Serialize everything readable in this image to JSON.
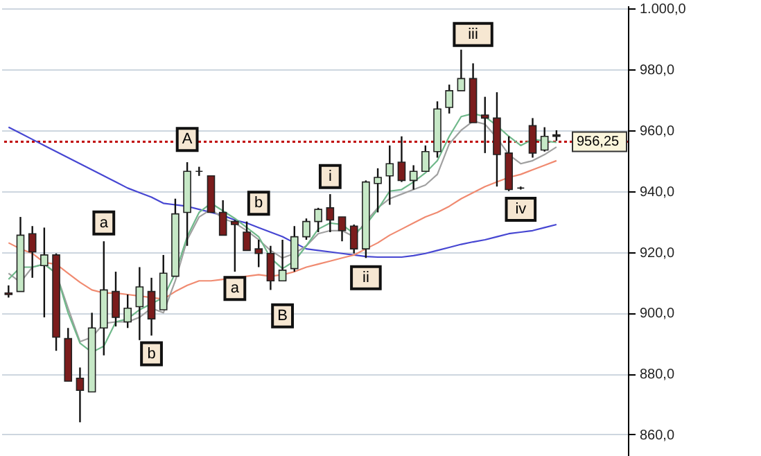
{
  "chart_data": {
    "type": "candlestick",
    "categories": [
      null,
      null,
      null,
      null,
      null,
      null,
      null,
      null,
      null,
      null,
      null,
      null,
      null,
      null,
      null,
      null,
      null,
      null,
      null,
      null,
      null,
      null,
      null,
      null,
      null,
      null,
      null,
      null,
      null,
      null,
      null,
      null,
      null,
      null,
      null,
      null,
      null,
      null,
      null,
      null,
      null,
      null,
      null,
      null,
      null,
      null,
      null
    ],
    "ohlc": [
      [
        906.5,
        909,
        905,
        906
      ],
      [
        907,
        931.5,
        907,
        925.5
      ],
      [
        926,
        928.5,
        911.5,
        920
      ],
      [
        915.5,
        928,
        898.5,
        919
      ],
      [
        919,
        919.5,
        887.5,
        892
      ],
      [
        891.5,
        895,
        877.5,
        877.5
      ],
      [
        878.5,
        882,
        864,
        874.5
      ],
      [
        874,
        900,
        874,
        895
      ],
      [
        895,
        923.5,
        886,
        907.5
      ],
      [
        907,
        913.5,
        895.5,
        898.5
      ],
      [
        897,
        906,
        895,
        901.5
      ],
      [
        902,
        915,
        891,
        908.5
      ],
      [
        907,
        911.5,
        892.5,
        898
      ],
      [
        901,
        919,
        901,
        913
      ],
      [
        912,
        937.5,
        912,
        932.5
      ],
      [
        933,
        949.5,
        922,
        946.5
      ],
      [
        946.5,
        948,
        945,
        946.5
      ],
      [
        945,
        945,
        933,
        933
      ],
      [
        933,
        937,
        925.5,
        925.5
      ],
      [
        930,
        930.5,
        913.5,
        929
      ],
      [
        926.5,
        930,
        920.5,
        920.5
      ],
      [
        921,
        924,
        915,
        919.5
      ],
      [
        919.5,
        922,
        907.5,
        910.5
      ],
      [
        910.5,
        924,
        910.5,
        914
      ],
      [
        914.5,
        928.5,
        913.5,
        925
      ],
      [
        925,
        931,
        924,
        930
      ],
      [
        930,
        934.5,
        926.5,
        934
      ],
      [
        934.5,
        939,
        926.5,
        930.5
      ],
      [
        931.5,
        931.5,
        923.5,
        927
      ],
      [
        928.5,
        929,
        919.5,
        921
      ],
      [
        921,
        943.5,
        918,
        943
      ],
      [
        942.5,
        947.5,
        933,
        944.5
      ],
      [
        945,
        955,
        935.5,
        949
      ],
      [
        949.5,
        958,
        943,
        943.5
      ],
      [
        943.5,
        948.5,
        940.5,
        946.5
      ],
      [
        946.5,
        955,
        946.5,
        953
      ],
      [
        953,
        969.5,
        951,
        967
      ],
      [
        967.5,
        975,
        965.5,
        973
      ],
      [
        973,
        986.5,
        973,
        977
      ],
      [
        977,
        982,
        962.5,
        962.5
      ],
      [
        965,
        971,
        952.5,
        964
      ],
      [
        964,
        972.5,
        941.5,
        952
      ],
      [
        952.5,
        958,
        940,
        940.5
      ],
      [
        941,
        941.5,
        940.5,
        941
      ],
      [
        961.5,
        964,
        951,
        952.5
      ],
      [
        953.5,
        961,
        953,
        958
      ],
      [
        958.5,
        960,
        956.5,
        958
      ]
    ],
    "colors": [
      "#7b1c1c",
      "#c6e8c6",
      "#7b1c1c",
      "#c6e8c6",
      "#7b1c1c",
      "#7b1c1c",
      "#7b1c1c",
      "#c6e8c6",
      "#c6e8c6",
      "#7b1c1c",
      "#c6e8c6",
      "#c6e8c6",
      "#7b1c1c",
      "#c6e8c6",
      "#c6e8c6",
      "#c6e8c6",
      "#222222",
      "#7b1c1c",
      "#7b1c1c",
      "#7b1c1c",
      "#7b1c1c",
      "#7b1c1c",
      "#7b1c1c",
      "#c6e8c6",
      "#c6e8c6",
      "#c6e8c6",
      "#c6e8c6",
      "#7b1c1c",
      "#7b1c1c",
      "#7b1c1c",
      "#c6e8c6",
      "#c6e8c6",
      "#c6e8c6",
      "#7b1c1c",
      "#c6e8c6",
      "#c6e8c6",
      "#c6e8c6",
      "#c6e8c6",
      "#c6e8c6",
      "#7b1c1c",
      "#7b1c1c",
      "#7b1c1c",
      "#7b1c1c",
      "#222222",
      "#7b1c1c",
      "#c6e8c6",
      "#222222"
    ],
    "series": [
      {
        "type": "line",
        "color": "#4646d2",
        "values": [
          961,
          959,
          957,
          955,
          953,
          951,
          949,
          947,
          945,
          943,
          941,
          939.5,
          938,
          936,
          935.5,
          935,
          934,
          933,
          932,
          930.5,
          929.5,
          928,
          926.5,
          925,
          923,
          921,
          920.5,
          920,
          919.5,
          919,
          918.5,
          918.3,
          918.3,
          918.3,
          918.8,
          919.5,
          920.5,
          921.5,
          922.5,
          923.3,
          924,
          925,
          926,
          926.5,
          927,
          928,
          929
        ]
      },
      {
        "type": "line",
        "color": "#f08a70",
        "values": [
          923,
          921,
          919.5,
          916.5,
          916,
          913,
          910,
          907.5,
          906.5,
          906.5,
          906,
          905.5,
          905,
          904.5,
          907,
          909,
          910.5,
          910.5,
          911,
          911.5,
          912,
          912.5,
          912,
          912.5,
          913.5,
          915,
          916,
          917,
          918,
          919,
          921,
          923,
          925.5,
          927.5,
          929.5,
          931.5,
          933,
          935,
          937.5,
          939.5,
          941.5,
          943,
          944.5,
          945.5,
          947,
          948.5,
          950
        ]
      },
      {
        "type": "line",
        "color": "#a0a0a0",
        "values": [
          913,
          910,
          915,
          916,
          913,
          901.5,
          890.5,
          892,
          896.5,
          897,
          897,
          898.5,
          901.5,
          900,
          910.5,
          924,
          931.5,
          934,
          931,
          929.5,
          927,
          924,
          920.5,
          918,
          919.5,
          922,
          926,
          927,
          927,
          925,
          930,
          934.5,
          937.5,
          939,
          940.5,
          942,
          945.5,
          955.5,
          960,
          963,
          962,
          957.5,
          952,
          949,
          950,
          952,
          954.5
        ]
      },
      {
        "type": "line",
        "color": "#6fb88a",
        "values": [
          911,
          915,
          915,
          916,
          913,
          900,
          890,
          887,
          889,
          897,
          898,
          901,
          903,
          905,
          913,
          925,
          933,
          936,
          933.5,
          931,
          928,
          925,
          918,
          914.5,
          917,
          922,
          927.5,
          929.5,
          929,
          926,
          929,
          934,
          940,
          940.5,
          943,
          946,
          950,
          958,
          964.5,
          965.5,
          964.5,
          961.5,
          958,
          955,
          957,
          956.5,
          956
        ]
      }
    ],
    "ylim": [
      852,
      1001
    ],
    "yticks": [
      {
        "value": 860,
        "label": "860,0"
      },
      {
        "value": 880,
        "label": "880,0"
      },
      {
        "value": 900,
        "label": "900,0"
      },
      {
        "value": 920,
        "label": "920,0"
      },
      {
        "value": 940,
        "label": "940,0"
      },
      {
        "value": 960,
        "label": "960,0"
      },
      {
        "value": 980,
        "label": "980,0"
      },
      {
        "value": 1000,
        "label": "1.000,0"
      }
    ],
    "grid": "y",
    "line_style": "solid",
    "ref_lines": [
      {
        "axis": "y",
        "value": 956.25,
        "label": "956,25",
        "color": "#c00000",
        "line_style": "dotted"
      }
    ],
    "annotations": [
      {
        "text": "a",
        "y": 929.5
      },
      {
        "text": "b",
        "y": 886.5
      },
      {
        "text": "A",
        "y": 957
      },
      {
        "text": "a",
        "y": 908
      },
      {
        "text": "b",
        "y": 936
      },
      {
        "text": "B",
        "y": 899
      },
      {
        "text": "i",
        "y": 944.8
      },
      {
        "text": "ii",
        "y": 911.5
      },
      {
        "text": "iii",
        "y": 991.5
      },
      {
        "text": "iv",
        "y": 934
      }
    ]
  }
}
